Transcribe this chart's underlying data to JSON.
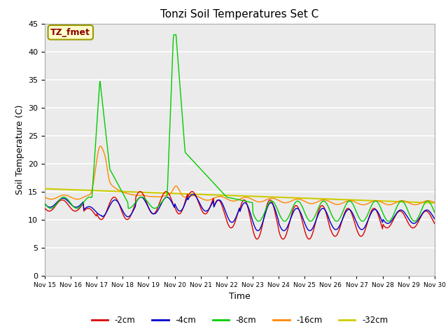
{
  "title": "Tonzi Soil Temperatures Set C",
  "xlabel": "Time",
  "ylabel": "Soil Temperature (C)",
  "ylim": [
    0,
    45
  ],
  "background_color": "#f0f0f0",
  "annotation_text": "TZ_fmet",
  "annotation_color": "#8b0000",
  "annotation_bg": "#ffffcc",
  "tick_labels": [
    "Nov 15",
    "Nov 16",
    "Nov 17",
    "Nov 18",
    "Nov 19",
    "Nov 20",
    "Nov 21",
    "Nov 22",
    "Nov 23",
    "Nov 24",
    "Nov 25",
    "Nov 26",
    "Nov 27",
    "Nov 28",
    "Nov 29",
    "Nov 30"
  ],
  "legend_colors": [
    "#dd0000",
    "#0000cc",
    "#00cc00",
    "#ff8800",
    "#cccc00"
  ],
  "legend_labels": [
    "-2cm",
    "-4cm",
    "-8cm",
    "-16cm",
    "-32cm"
  ]
}
